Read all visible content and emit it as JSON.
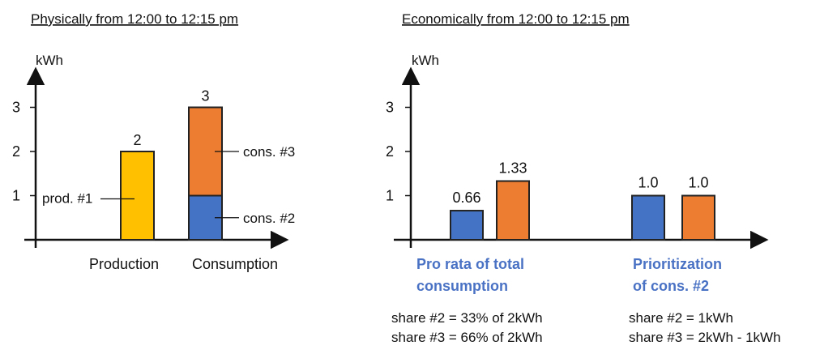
{
  "colors": {
    "production": "#ffc000",
    "consumption_3": "#ed7d31",
    "consumption_2": "#4472c4",
    "outline": "#222222",
    "blue_text": "#4a72c4"
  },
  "chart_data": [
    {
      "type": "bar",
      "title": "Physically from 12:00 to 12:15 pm",
      "ylabel": "kWh",
      "ylim": [
        0,
        3
      ],
      "yticks": [
        "1",
        "2",
        "3"
      ],
      "categories": [
        "Production",
        "Consumption"
      ],
      "stacked": true,
      "series": [
        {
          "name": "prod. #1",
          "values": [
            2,
            0
          ],
          "color": "production"
        },
        {
          "name": "cons. #2",
          "values": [
            0,
            1
          ],
          "color": "consumption_2"
        },
        {
          "name": "cons. #3",
          "values": [
            0,
            2
          ],
          "color": "consumption_3"
        }
      ],
      "totals_labels": [
        "2",
        "3"
      ]
    },
    {
      "type": "bar",
      "title": "Economically from 12:00 to 12:15 pm",
      "ylabel": "kWh",
      "ylim": [
        0,
        3
      ],
      "yticks": [
        "1",
        "2",
        "3"
      ],
      "groups": [
        {
          "label_line1": "Pro rata of total",
          "label_line2": "consumption",
          "note1": "share #2 = 33% of 2kWh",
          "note2": "share #3 = 66% of 2kWh",
          "bars": [
            {
              "value": 0.66,
              "label": "0.66",
              "color": "consumption_2"
            },
            {
              "value": 1.33,
              "label": "1.33",
              "color": "consumption_3"
            }
          ]
        },
        {
          "label_line1": "Prioritization",
          "label_line2": "of cons. #2",
          "note1": "share #2 = 1kWh",
          "note2": "share #3 = 2kWh - 1kWh",
          "bars": [
            {
              "value": 1.0,
              "label": "1.0",
              "color": "consumption_2"
            },
            {
              "value": 1.0,
              "label": "1.0",
              "color": "consumption_3"
            }
          ]
        }
      ]
    }
  ]
}
